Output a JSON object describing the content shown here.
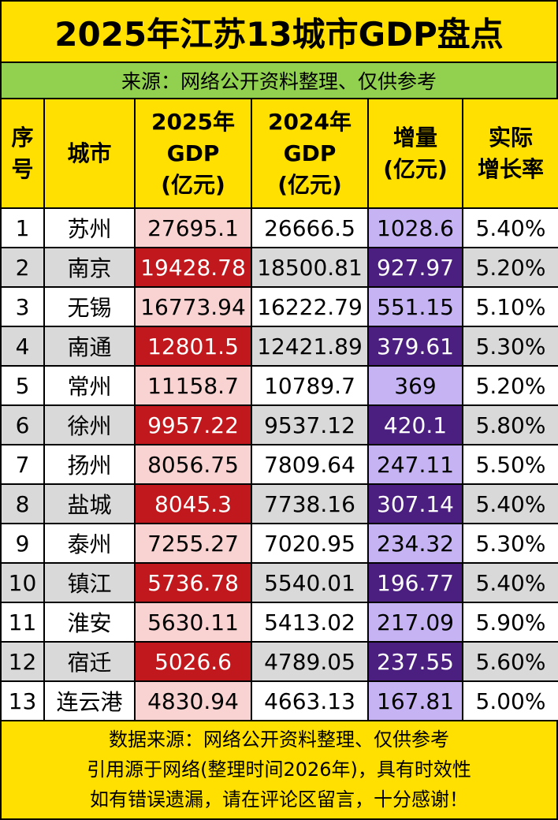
{
  "title": "2025年江苏13城市GDP盘点",
  "subtitle": "来源：网络公开资料整理、仅供参考",
  "table": {
    "columns": [
      [
        "序",
        "号"
      ],
      [
        "城市"
      ],
      [
        "2025年",
        "GDP",
        "(亿元)"
      ],
      [
        "2024年",
        "GDP",
        "(亿元)"
      ],
      [
        "增量",
        "(亿元)"
      ],
      [
        "实际",
        "增长率"
      ]
    ],
    "rows": [
      [
        "1",
        "苏州",
        "27695.1",
        "26666.5",
        "1028.6",
        "5.40%"
      ],
      [
        "2",
        "南京",
        "19428.78",
        "18500.81",
        "927.97",
        "5.20%"
      ],
      [
        "3",
        "无锡",
        "16773.94",
        "16222.79",
        "551.15",
        "5.10%"
      ],
      [
        "4",
        "南通",
        "12801.5",
        "12421.89",
        "379.61",
        "5.30%"
      ],
      [
        "5",
        "常州",
        "11158.7",
        "10789.7",
        "369",
        "5.20%"
      ],
      [
        "6",
        "徐州",
        "9957.22",
        "9537.12",
        "420.1",
        "5.80%"
      ],
      [
        "7",
        "扬州",
        "8056.75",
        "7809.64",
        "247.11",
        "5.50%"
      ],
      [
        "8",
        "盐城",
        "8045.3",
        "7738.16",
        "307.14",
        "5.40%"
      ],
      [
        "9",
        "泰州",
        "7255.27",
        "7020.95",
        "234.32",
        "5.30%"
      ],
      [
        "10",
        "镇江",
        "5736.78",
        "5540.01",
        "196.77",
        "5.40%"
      ],
      [
        "11",
        "淮安",
        "5630.11",
        "5413.02",
        "217.09",
        "5.90%"
      ],
      [
        "12",
        "宿迁",
        "5026.6",
        "4789.05",
        "237.55",
        "5.60%"
      ],
      [
        "13",
        "连云港",
        "4830.94",
        "4663.13",
        "167.81",
        "5.00%"
      ]
    ]
  },
  "footer": [
    "数据来源：网络公开资料整理、仅供参考",
    "引用源于网络(整理时间2026年)，具有时效性",
    "如有错误遗漏，请在评论区留言，十分感谢！"
  ]
}
